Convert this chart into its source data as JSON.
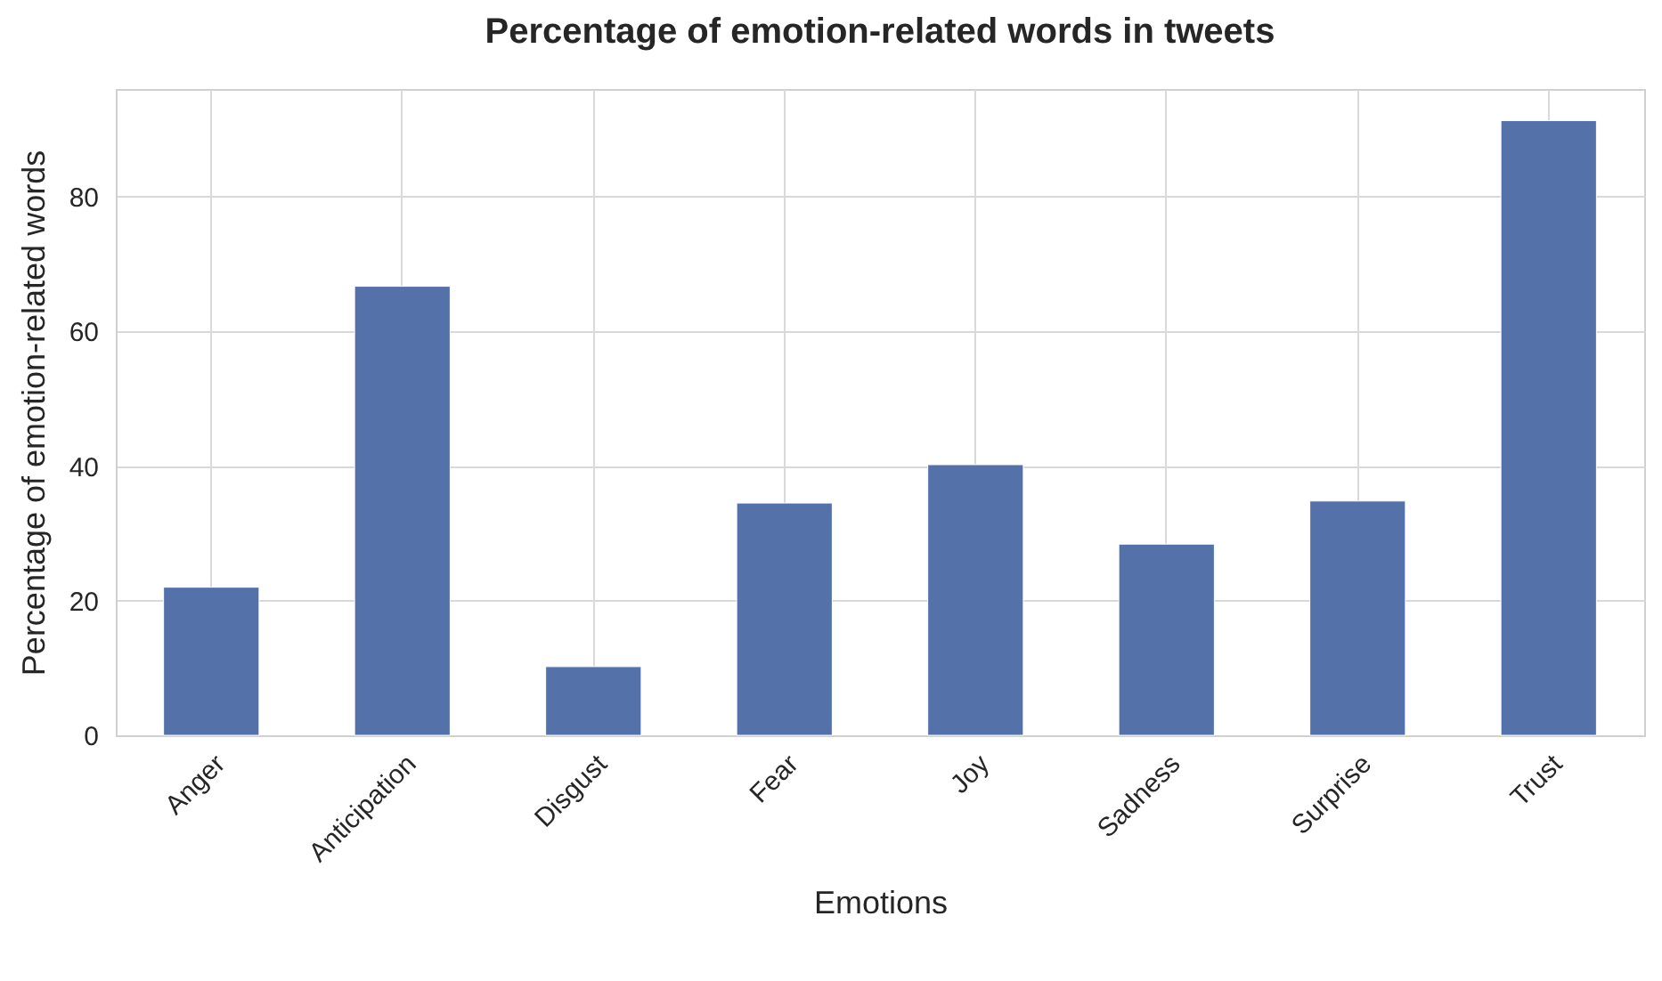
{
  "chart_data": {
    "type": "bar",
    "title": "Percentage of emotion-related words in tweets",
    "xlabel": "Emotions",
    "ylabel": "Percentage of emotion-related words",
    "categories": [
      "Anger",
      "Anticipation",
      "Disgust",
      "Fear",
      "Joy",
      "Sadness",
      "Surprise",
      "Trust"
    ],
    "values": [
      22.0,
      66.7,
      10.2,
      34.5,
      40.2,
      28.4,
      34.8,
      91.3
    ],
    "color": "#5571aa",
    "ylim": [
      0,
      96
    ],
    "yticks": [
      0,
      20,
      40,
      60,
      80
    ],
    "grid": true
  }
}
